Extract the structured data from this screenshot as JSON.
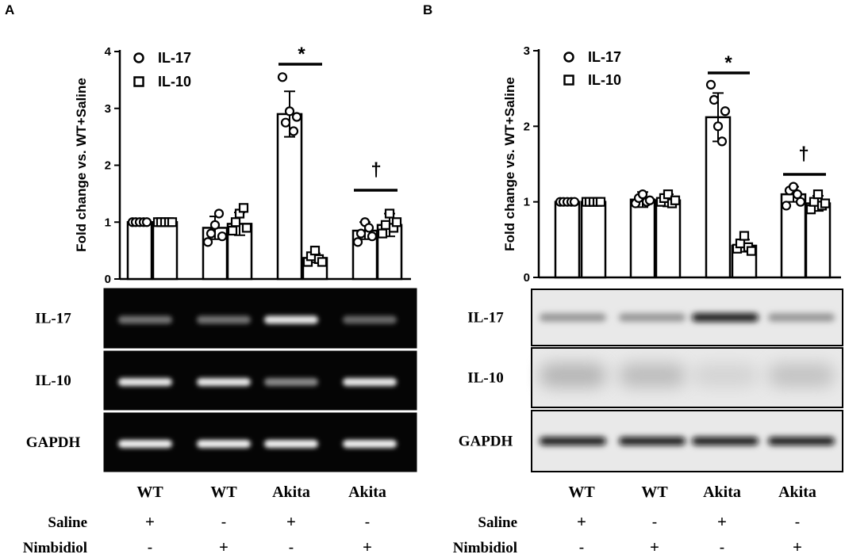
{
  "panels": [
    {
      "letter": "A"
    },
    {
      "letter": "B"
    }
  ],
  "chart_data": [
    {
      "type": "bar",
      "panel": "A",
      "ylabel": "Fold change vs. WT+Saline",
      "ylim": [
        0,
        4
      ],
      "yticks": [
        0,
        1,
        2,
        3,
        4
      ],
      "categories": [
        "WT Saline",
        "WT Nimbidiol",
        "Akita Saline",
        "Akita Nimbidiol"
      ],
      "series": [
        {
          "name": "IL-17",
          "marker": "circle",
          "values": [
            1.0,
            0.9,
            2.9,
            0.85
          ],
          "error": [
            0.02,
            0.2,
            0.4,
            0.15
          ]
        },
        {
          "name": "IL-10",
          "marker": "square",
          "values": [
            1.0,
            0.97,
            0.37,
            0.95
          ],
          "error": [
            0.02,
            0.2,
            0.08,
            0.2
          ]
        }
      ],
      "points": [
        [
          [
            1.0,
            1.0,
            1.0,
            1.0,
            1.0
          ],
          [
            1.0,
            1.0,
            1.0,
            1.0,
            1.0
          ]
        ],
        [
          [
            0.65,
            0.8,
            0.95,
            1.15,
            0.75
          ],
          [
            0.85,
            1.0,
            1.15,
            1.25,
            0.9
          ]
        ],
        [
          [
            3.55,
            2.75,
            2.95,
            2.6,
            2.85
          ],
          [
            0.3,
            0.4,
            0.5,
            0.35,
            0.3
          ]
        ],
        [
          [
            0.65,
            0.8,
            1.0,
            0.9,
            0.75
          ],
          [
            0.8,
            0.95,
            1.15,
            0.9,
            1.0
          ]
        ]
      ],
      "annotations": [
        {
          "text": "*",
          "group": 2
        },
        {
          "text": "†",
          "group": 3
        }
      ],
      "blots": [
        {
          "label": "IL-17",
          "style": "gel",
          "intensity": [
            0.35,
            0.35,
            0.9,
            0.3
          ]
        },
        {
          "label": "IL-10",
          "style": "gel",
          "intensity": [
            0.9,
            0.9,
            0.45,
            0.9
          ]
        },
        {
          "label": "GAPDH",
          "style": "gel",
          "intensity": [
            0.95,
            0.95,
            0.95,
            0.95
          ]
        }
      ]
    },
    {
      "type": "bar",
      "panel": "B",
      "ylabel": "Fold change vs. WT+Saline",
      "ylim": [
        0,
        3
      ],
      "yticks": [
        0,
        1,
        2,
        3
      ],
      "categories": [
        "WT Saline",
        "WT Nimbidiol",
        "Akita Saline",
        "Akita Nimbidiol"
      ],
      "series": [
        {
          "name": "IL-17",
          "marker": "circle",
          "values": [
            1.0,
            1.03,
            2.12,
            1.1
          ],
          "error": [
            0.02,
            0.1,
            0.32,
            0.1
          ]
        },
        {
          "name": "IL-10",
          "marker": "square",
          "values": [
            1.0,
            1.02,
            0.42,
            0.98
          ],
          "error": [
            0.02,
            0.08,
            0.08,
            0.1
          ]
        }
      ],
      "points": [
        [
          [
            1.0,
            1.0,
            1.0,
            1.0,
            1.0
          ],
          [
            1.0,
            1.0,
            1.0,
            1.0,
            1.0
          ]
        ],
        [
          [
            0.98,
            1.05,
            1.1,
            1.0,
            1.02
          ],
          [
            1.0,
            1.05,
            1.1,
            0.98,
            1.02
          ]
        ],
        [
          [
            2.55,
            2.35,
            2.0,
            1.8,
            2.2
          ],
          [
            0.38,
            0.45,
            0.55,
            0.4,
            0.35
          ]
        ],
        [
          [
            0.95,
            1.15,
            1.2,
            1.1,
            1.0
          ],
          [
            0.9,
            1.0,
            1.1,
            0.95,
            0.98
          ]
        ]
      ],
      "annotations": [
        {
          "text": "*",
          "group": 2
        },
        {
          "text": "†",
          "group": 3
        }
      ],
      "blots": [
        {
          "label": "IL-17",
          "style": "western",
          "intensity": [
            0.35,
            0.35,
            0.95,
            0.35
          ]
        },
        {
          "label": "IL-10",
          "style": "western",
          "intensity": [
            0.35,
            0.3,
            0.12,
            0.25
          ]
        },
        {
          "label": "GAPDH",
          "style": "western",
          "intensity": [
            0.95,
            0.95,
            0.95,
            0.95
          ]
        }
      ]
    }
  ],
  "conditions": {
    "groups": [
      "WT",
      "WT",
      "Akita",
      "Akita"
    ],
    "rows": [
      {
        "label": "Saline",
        "signs": [
          "+",
          "-",
          "+",
          "-"
        ]
      },
      {
        "label": "Nimbidiol",
        "signs": [
          "-",
          "+",
          "-",
          "+"
        ]
      }
    ]
  }
}
